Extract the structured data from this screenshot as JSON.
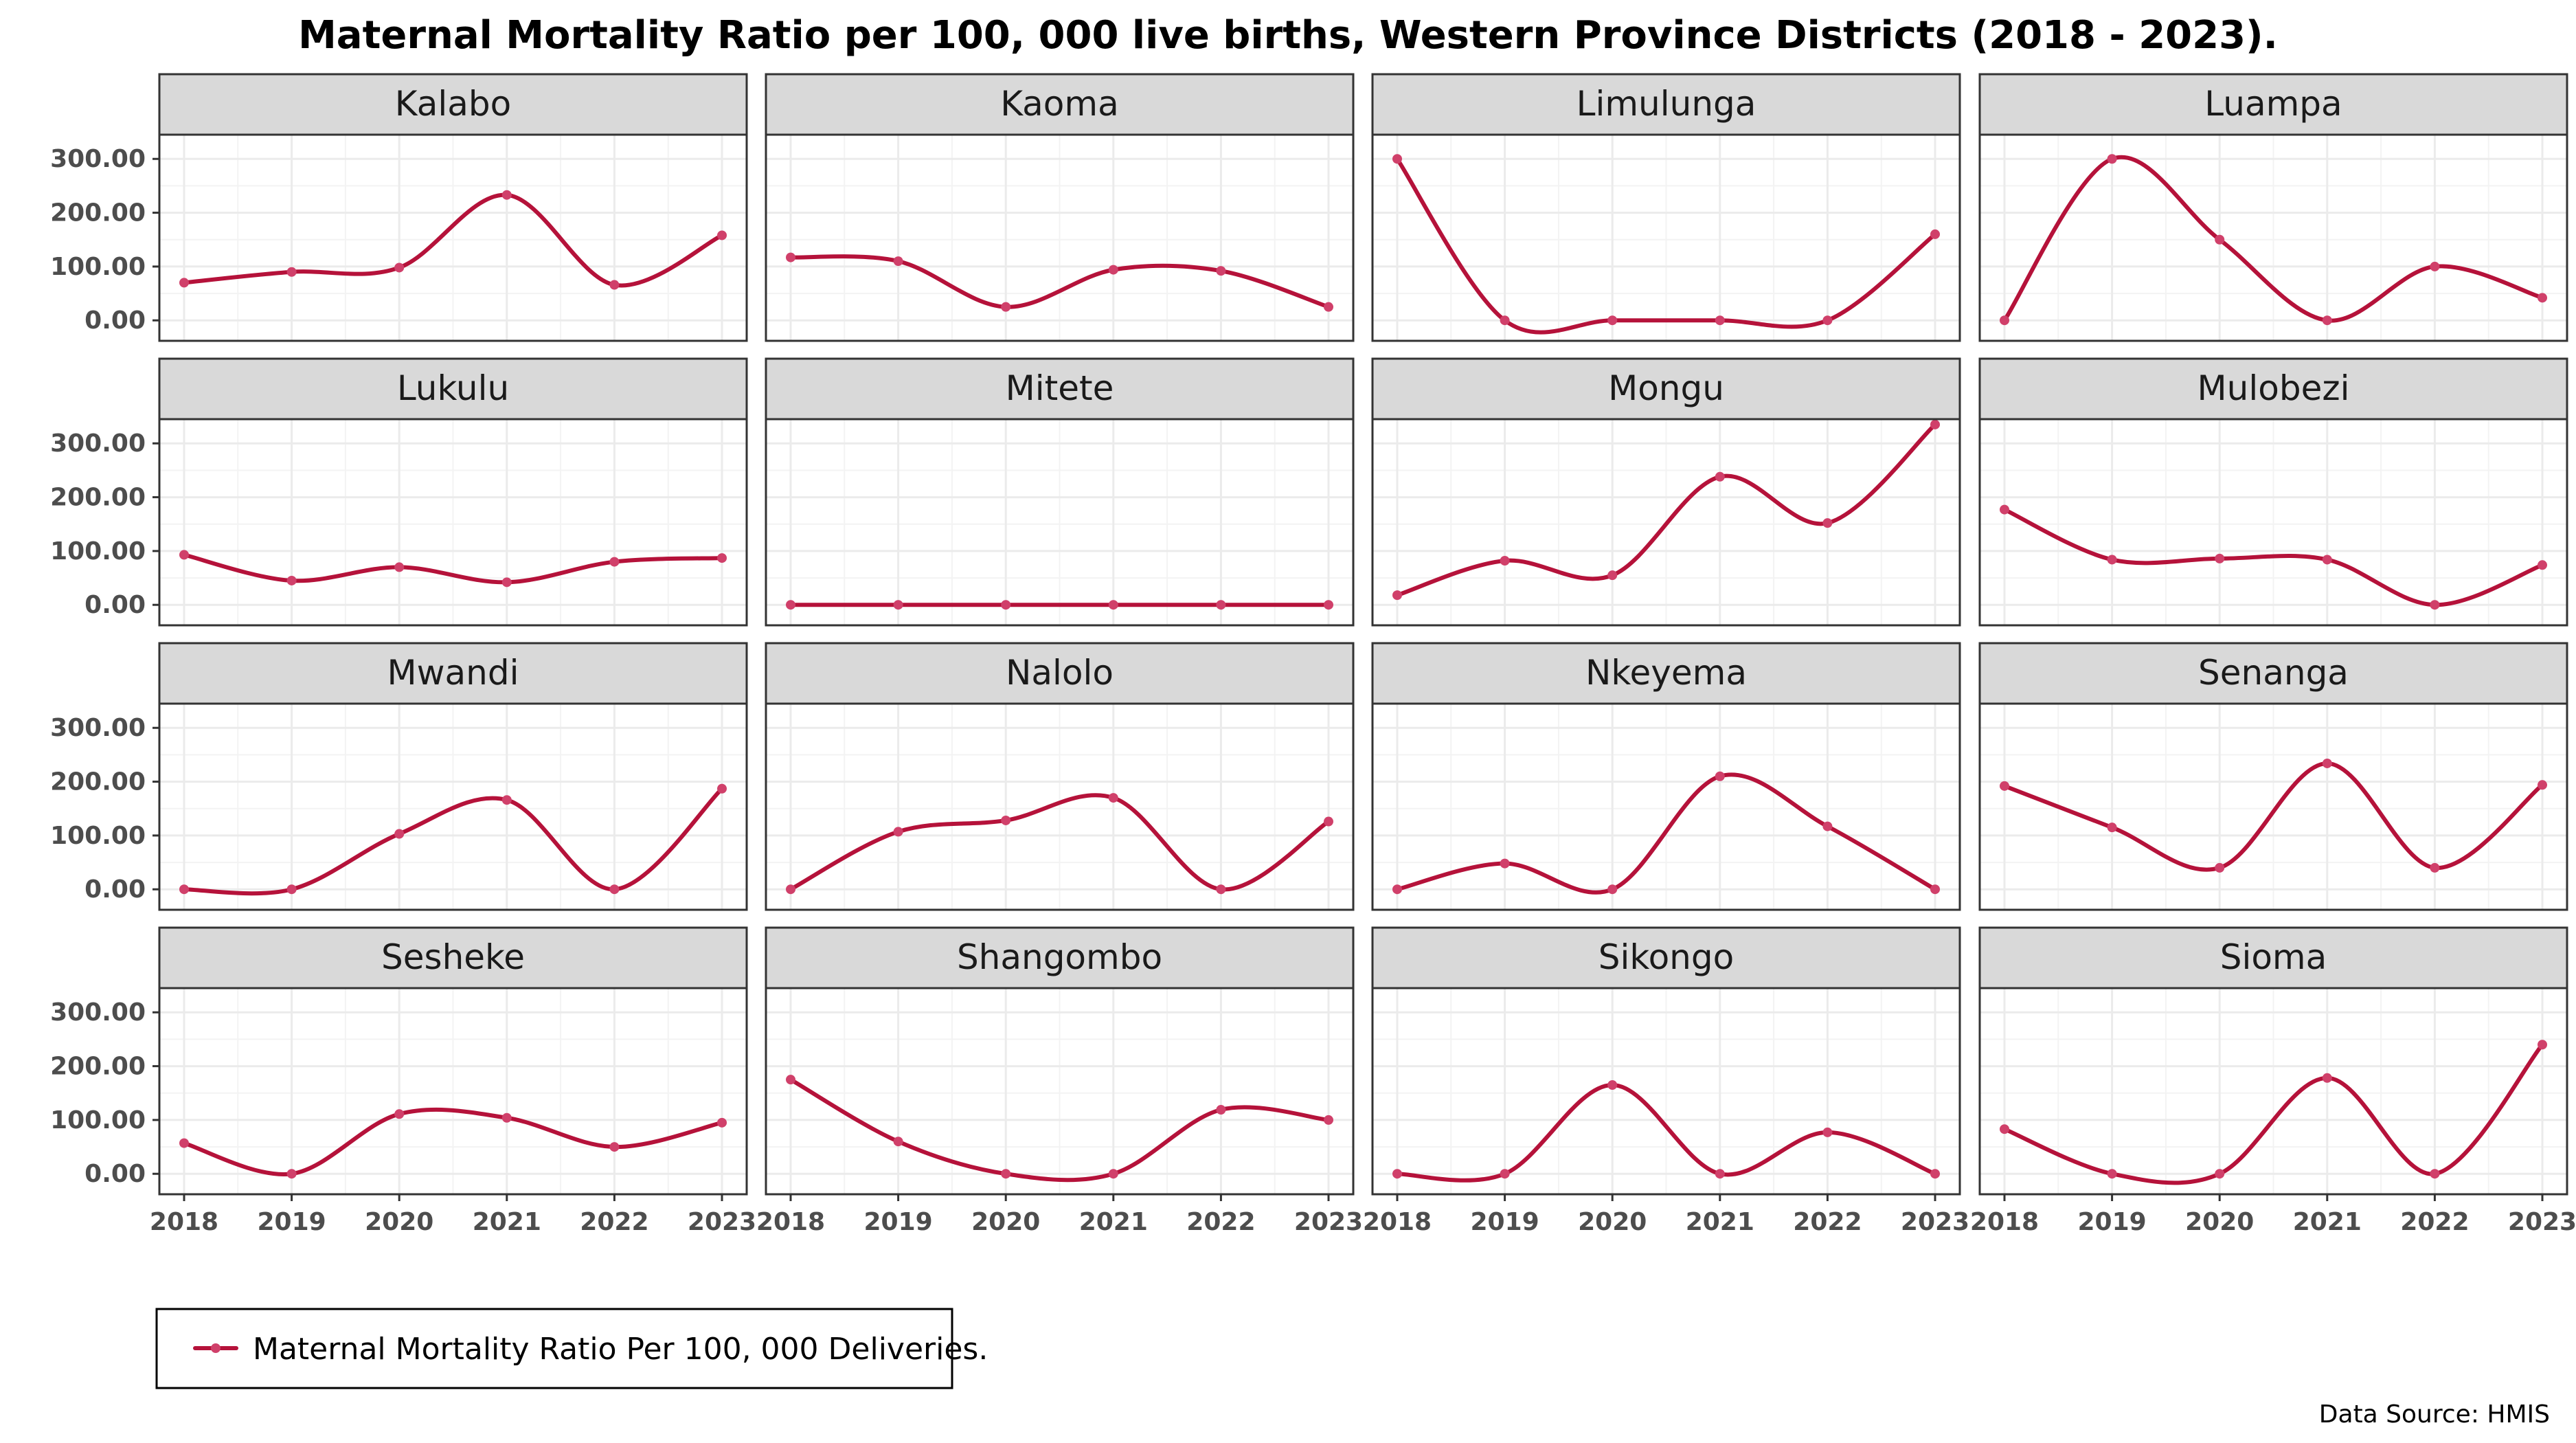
{
  "title": "Maternal Mortality Ratio per 100, 000 live births, Western Province Districts (2018 - 2023).",
  "legend_label": "Maternal Mortality Ratio Per 100, 000 Deliveries.",
  "source": "Data Source: HMIS",
  "colors": {
    "series": "#b5123a",
    "point": "#d0406a",
    "strip_fill": "#d9d9d9",
    "panel_border": "#333333",
    "grid": "#ebebeb",
    "tick_text": "#4d4d4d"
  },
  "chart_data": {
    "type": "line",
    "facet": "wrap",
    "facet_ncol": 4,
    "grid": true,
    "legend_position": "bottom-left",
    "x": [
      2018,
      2019,
      2020,
      2021,
      2022,
      2023
    ],
    "x_tick_labels": [
      "2018",
      "2019",
      "2020",
      "2021",
      "2022",
      "2023"
    ],
    "ylim": [
      -38,
      345
    ],
    "y_ticks": [
      0,
      100,
      200,
      300
    ],
    "y_tick_labels": [
      "0.00",
      "100.00",
      "200.00",
      "300.00"
    ],
    "series_name": "Maternal Mortality Ratio Per 100, 000 Deliveries.",
    "panels": [
      {
        "name": "Kalabo",
        "values": [
          70,
          90,
          98,
          233,
          66,
          158
        ]
      },
      {
        "name": "Kaoma",
        "values": [
          117,
          110,
          25,
          94,
          92,
          25
        ]
      },
      {
        "name": "Limulunga",
        "values": [
          300,
          0,
          0,
          0,
          0,
          160
        ]
      },
      {
        "name": "Luampa",
        "values": [
          0,
          300,
          150,
          0,
          100,
          42
        ]
      },
      {
        "name": "Lukulu",
        "values": [
          93,
          45,
          70,
          42,
          80,
          87
        ]
      },
      {
        "name": "Mitete",
        "values": [
          0,
          0,
          0,
          0,
          0,
          0
        ]
      },
      {
        "name": "Mongu",
        "values": [
          18,
          82,
          55,
          238,
          152,
          335
        ]
      },
      {
        "name": "Mulobezi",
        "values": [
          177,
          84,
          86,
          84,
          0,
          74
        ]
      },
      {
        "name": "Mwandi",
        "values": [
          0,
          0,
          103,
          166,
          0,
          187
        ]
      },
      {
        "name": "Nalolo",
        "values": [
          0,
          107,
          128,
          170,
          0,
          126
        ]
      },
      {
        "name": "Nkeyema",
        "values": [
          0,
          48,
          0,
          210,
          117,
          0
        ]
      },
      {
        "name": "Senanga",
        "values": [
          192,
          115,
          40,
          234,
          40,
          194
        ]
      },
      {
        "name": "Sesheke",
        "values": [
          57,
          0,
          111,
          104,
          50,
          95
        ]
      },
      {
        "name": "Shangombo",
        "values": [
          175,
          60,
          0,
          0,
          119,
          100
        ]
      },
      {
        "name": "Sikongo",
        "values": [
          0,
          0,
          165,
          0,
          77,
          0
        ]
      },
      {
        "name": "Sioma",
        "values": [
          83,
          0,
          0,
          178,
          0,
          240
        ]
      }
    ]
  }
}
